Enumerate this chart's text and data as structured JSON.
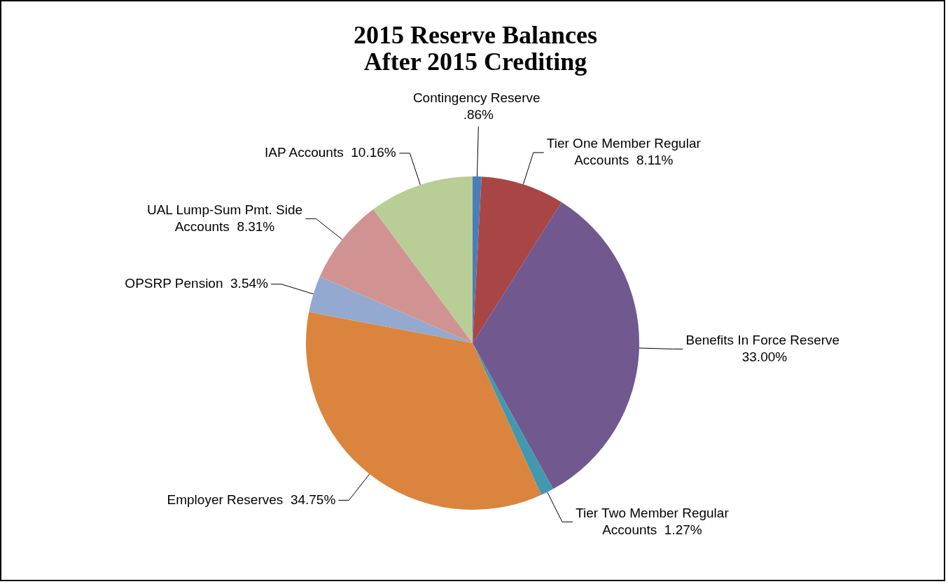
{
  "chart_data": {
    "type": "pie",
    "title": "2015 Reserve Balances After 2015 Crediting",
    "categories": [
      "Contingency Reserve",
      "Tier One Member Regular Accounts",
      "Benefits In Force Reserve",
      "Tier Two Member Regular Accounts",
      "Employer Reserves",
      "OPSRP Pension",
      "UAL Lump-Sum Pmt. Side Accounts",
      "IAP Accounts"
    ],
    "values": [
      0.86,
      8.11,
      33.0,
      1.27,
      34.75,
      3.54,
      8.31,
      10.16
    ],
    "value_labels": [
      ".86%",
      "8.11%",
      "33.00%",
      "1.27%",
      "34.75%",
      "3.54%",
      "8.31%",
      "10.16%"
    ],
    "colors": [
      "#4a7ebb",
      "#a84646",
      "#71588f",
      "#4198af",
      "#db843d",
      "#93a9cf",
      "#d19392",
      "#b9cd96"
    ],
    "legend": false
  }
}
